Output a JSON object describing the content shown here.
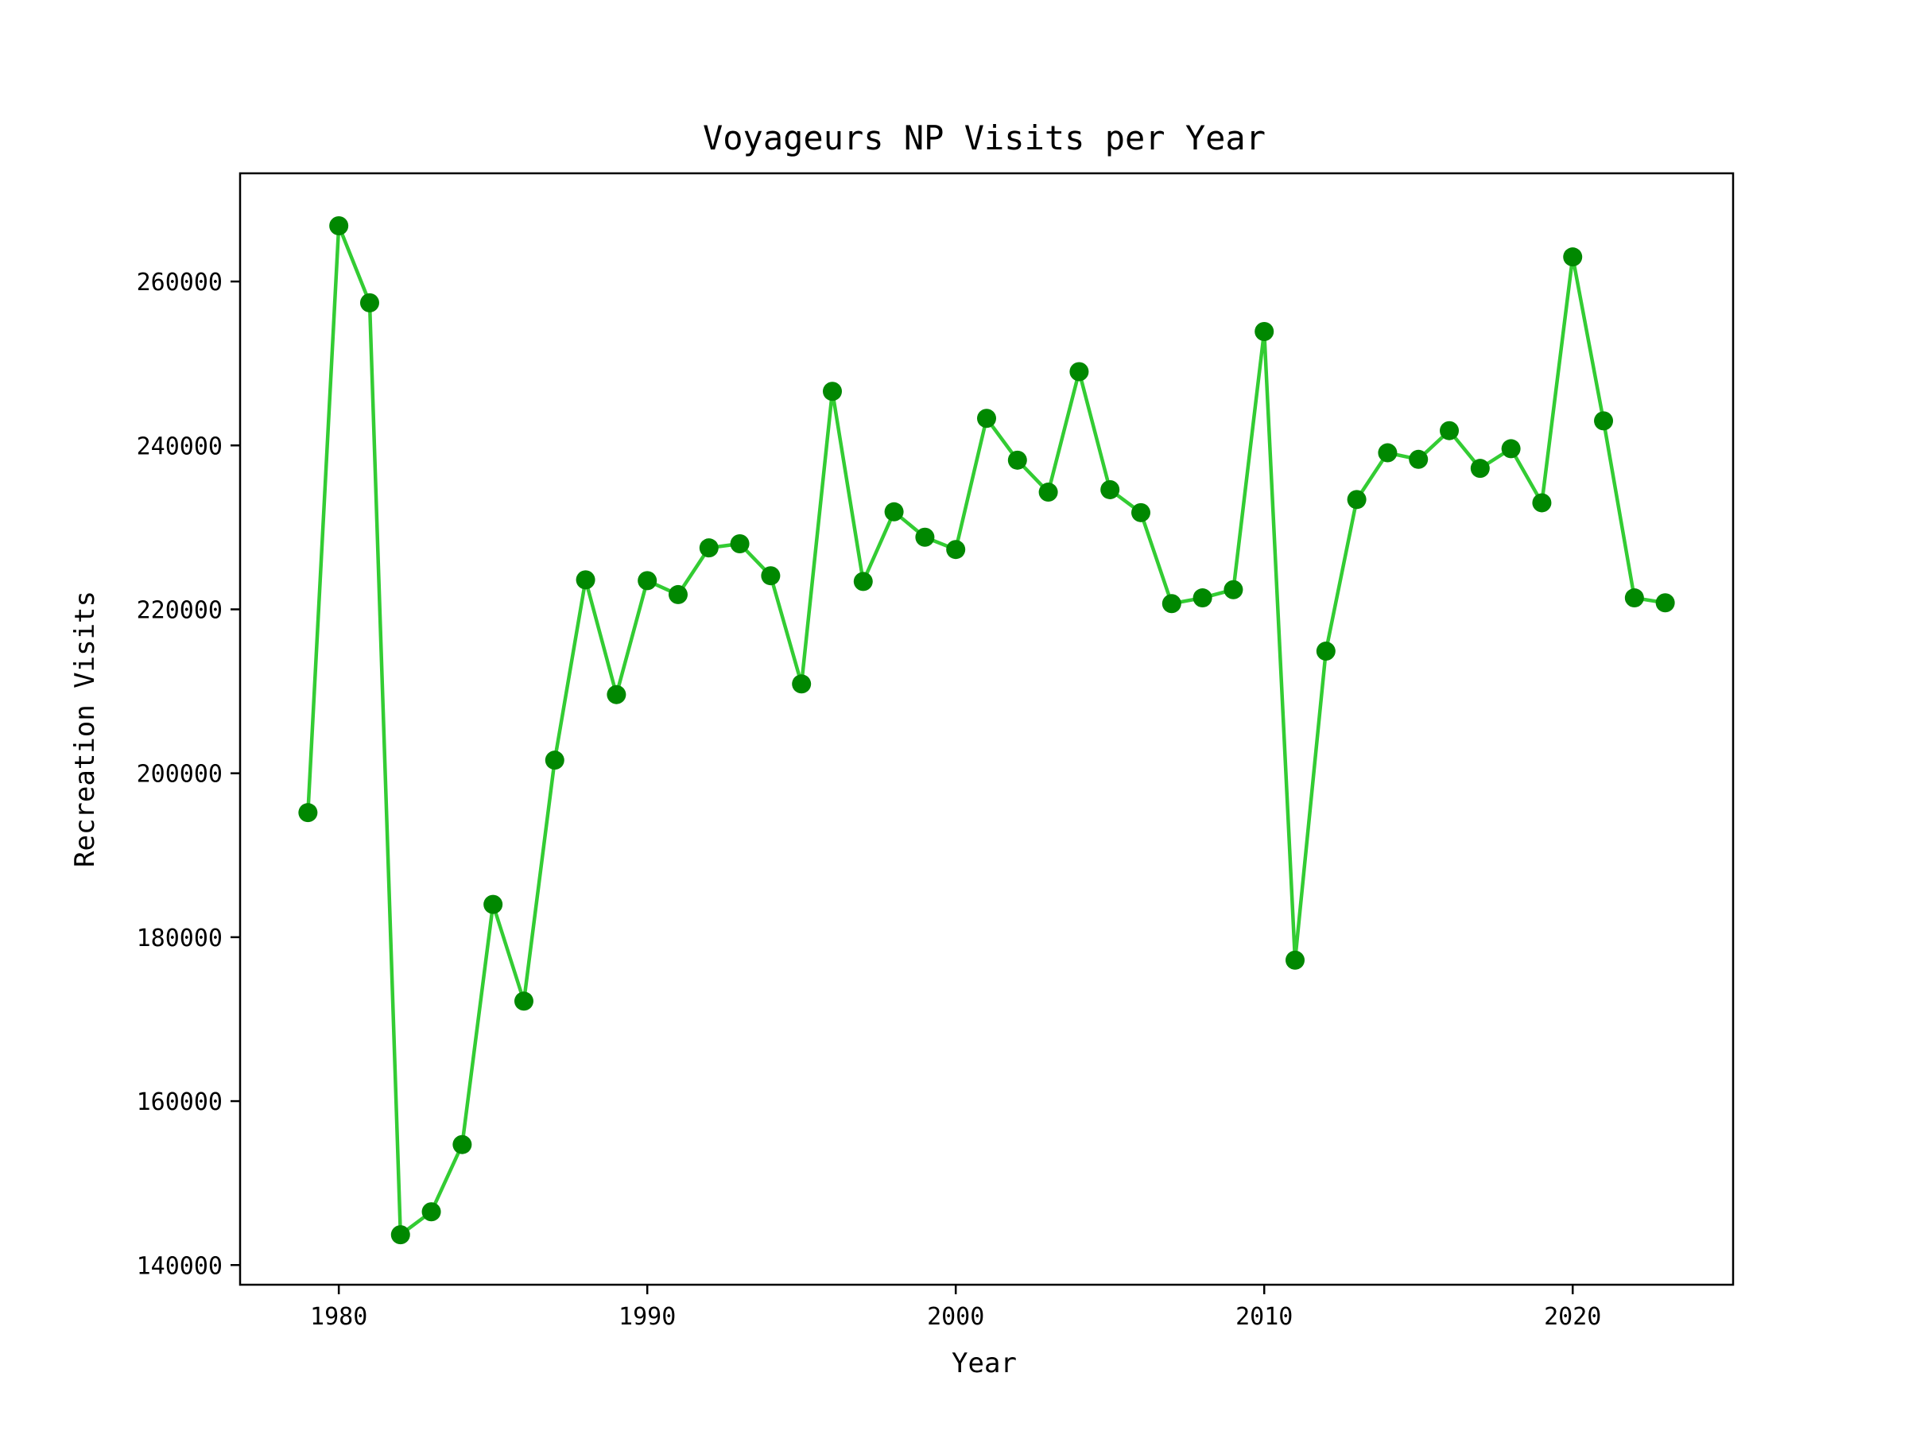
{
  "chart_data": {
    "type": "line",
    "title": "Voyageurs NP Visits per Year",
    "xlabel": "Year",
    "ylabel": "Recreation Visits",
    "xlim": [
      1976.8,
      2025.2
    ],
    "ylim": [
      137600,
      273200
    ],
    "xticks": [
      1980,
      1990,
      2000,
      2010,
      2020
    ],
    "yticks": [
      140000,
      160000,
      180000,
      200000,
      220000,
      240000,
      260000
    ],
    "grid": false,
    "legend": "none",
    "line_color": "#33cc33",
    "marker_color": "#008800",
    "series": [
      {
        "x": [
          1979,
          1980,
          1981,
          1982,
          1983,
          1984,
          1985,
          1986,
          1987,
          1988,
          1989,
          1990,
          1991,
          1992,
          1993,
          1994,
          1995,
          1996,
          1997,
          1998,
          1999,
          2000,
          2001,
          2002,
          2003,
          2004,
          2005,
          2006,
          2007,
          2008,
          2009,
          2010,
          2011,
          2012,
          2013,
          2014,
          2015,
          2016,
          2017,
          2018,
          2019,
          2020,
          2021,
          2022,
          2023
        ],
        "values": [
          195200,
          266800,
          257400,
          143700,
          146500,
          154700,
          184000,
          172200,
          201600,
          223600,
          209600,
          223500,
          221800,
          227500,
          228000,
          224100,
          210900,
          246600,
          223400,
          231900,
          228800,
          227300,
          243300,
          238200,
          234300,
          249000,
          234600,
          231800,
          220700,
          221400,
          222400,
          253900,
          177200,
          214900,
          233400,
          239100,
          238300,
          241800,
          237200,
          239600,
          233000,
          263000,
          243000,
          221400,
          220800
        ]
      }
    ]
  }
}
